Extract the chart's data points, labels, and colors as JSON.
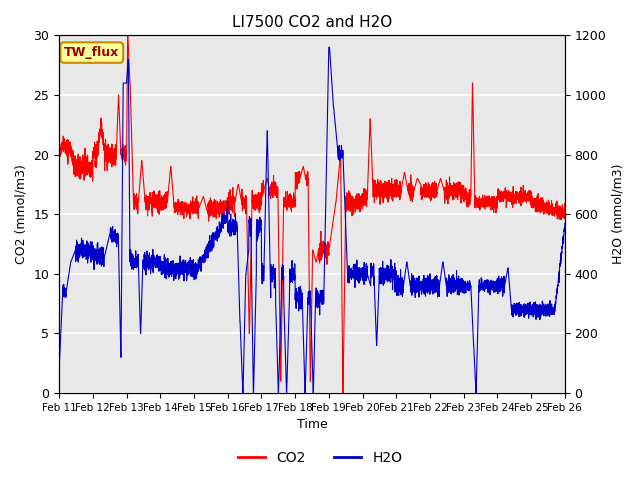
{
  "title": "LI7500 CO2 and H2O",
  "xlabel": "Time",
  "ylabel_left": "CO2 (mmol/m3)",
  "ylabel_right": "H2O (mmol/m3)",
  "annotation": "TW_flux",
  "x_tick_labels": [
    "Feb 11",
    "Feb 12",
    "Feb 13",
    "Feb 14",
    "Feb 15",
    "Feb 16",
    "Feb 17",
    "Feb 18",
    "Feb 19",
    "Feb 20",
    "Feb 21",
    "Feb 22",
    "Feb 23",
    "Feb 24",
    "Feb 25",
    "Feb 26"
  ],
  "ylim_left": [
    0,
    30
  ],
  "ylim_right": [
    0,
    1200
  ],
  "co2_color": "#FF0000",
  "h2o_color": "#0000CC",
  "legend_co2": "CO2",
  "legend_h2o": "H2O",
  "fig_bg_color": "#FFFFFF",
  "plot_bg_color": "#E8E8E8",
  "grid_color": "#FFFFFF",
  "annotation_bg": "#FFFF99",
  "annotation_border": "#CC8800",
  "annotation_text_color": "#990000"
}
